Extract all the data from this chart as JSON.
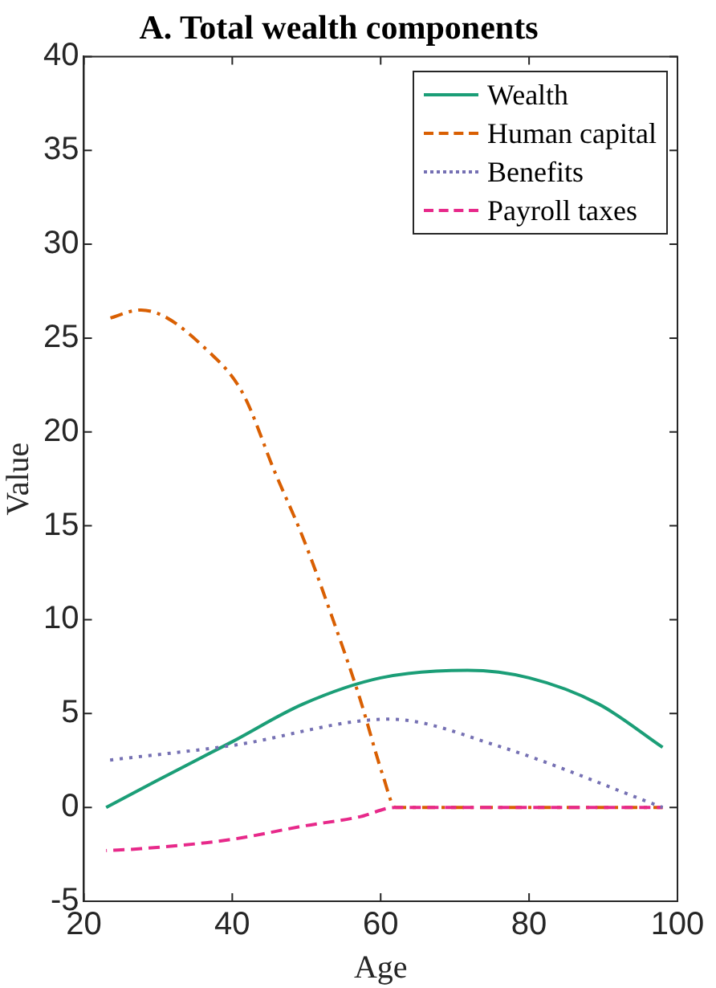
{
  "chart_data": {
    "type": "line",
    "title": "A. Total wealth components",
    "xlabel": "Age",
    "ylabel": "Value",
    "xlim": [
      20,
      100
    ],
    "xticks": [
      20,
      40,
      60,
      80,
      100
    ],
    "ylim": [
      -5,
      40
    ],
    "yticks": [
      -5,
      0,
      5,
      10,
      15,
      20,
      25,
      30,
      35,
      40
    ],
    "grid": false,
    "legend": "top right",
    "marker": "none",
    "series": [
      {
        "name": "Wealth",
        "color": "#1b9e77",
        "line_style": "solid",
        "x": [
          23,
          29.7,
          40,
          49.5,
          60,
          71.7,
          80,
          89.4,
          98
        ],
        "values": [
          0,
          1.4,
          3.5,
          5.5,
          6.9,
          7.3,
          6.9,
          5.5,
          3.2
        ]
      },
      {
        "name": "Human capital",
        "color": "#d95f02",
        "line_style": "dashdot",
        "x": [
          23,
          27.7,
          37.3,
          41.5,
          45.7,
          49.5,
          53.4,
          57.2,
          60.3,
          62,
          98
        ],
        "values": [
          26,
          26.5,
          24.1,
          22,
          17.9,
          14.4,
          10.2,
          5.8,
          1.7,
          0,
          0
        ]
      },
      {
        "name": "Benefits",
        "color": "#7570b3",
        "line_style": "dotted",
        "x": [
          23,
          40,
          61.2,
          75.6,
          98
        ],
        "values": [
          2.5,
          3.3,
          4.7,
          3.3,
          0
        ]
      },
      {
        "name": "Payroll taxes",
        "color": "#e7298a",
        "line_style": "dashed",
        "x": [
          23,
          27.7,
          40,
          49.5,
          57.2,
          62,
          98
        ],
        "values": [
          -2.3,
          -2.2,
          -1.7,
          -1,
          -0.5,
          0,
          0
        ]
      }
    ]
  }
}
